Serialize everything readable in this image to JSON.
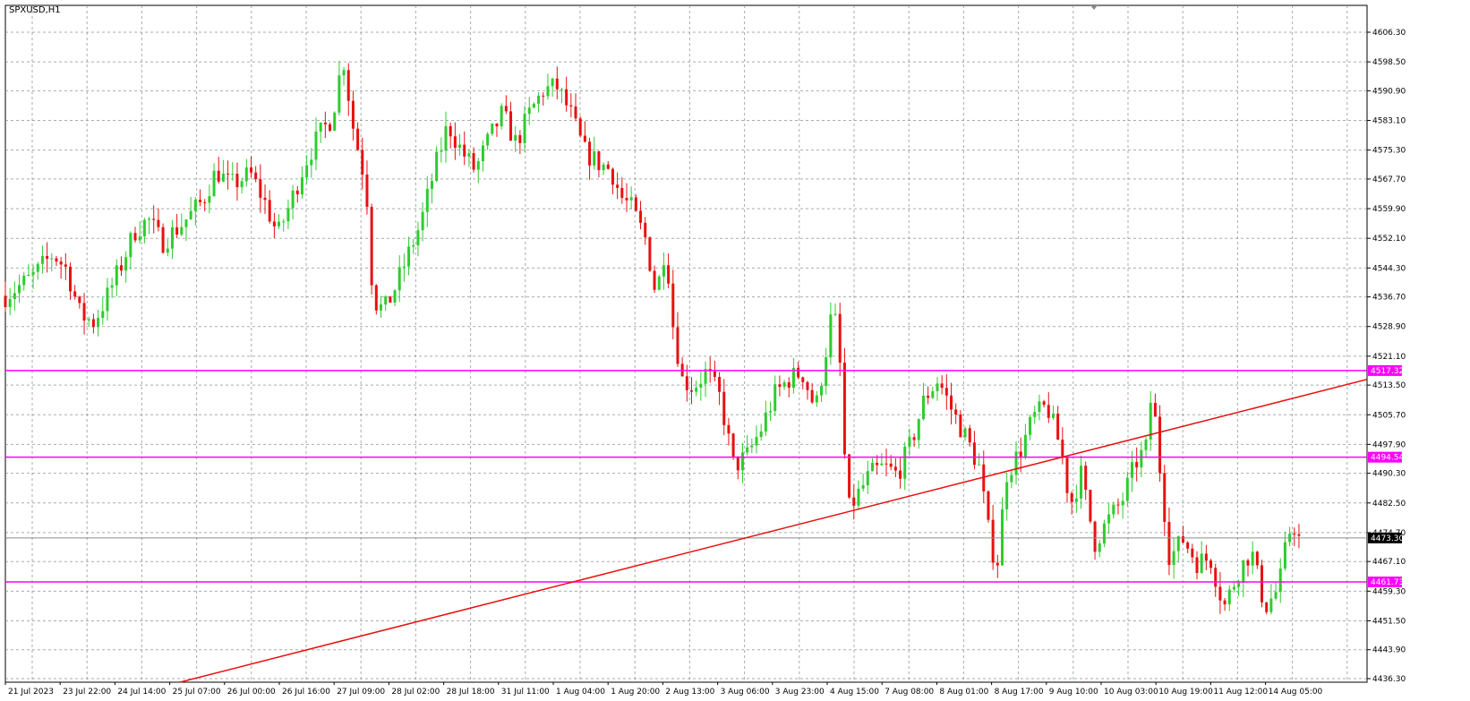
{
  "symbol_label": "SPXUSD,H1",
  "chart_data": {
    "type": "candlestick",
    "symbol": "SPXUSD",
    "timeframe": "H1",
    "ylim": [
      4436.3,
      4610.0
    ],
    "grid": true,
    "y_ticks": [
      {
        "value": 4606.3,
        "label": "4606.30"
      },
      {
        "value": 4598.5,
        "label": "4598.50"
      },
      {
        "value": 4590.9,
        "label": "4590.90"
      },
      {
        "value": 4583.1,
        "label": "4583.10"
      },
      {
        "value": 4575.3,
        "label": "4575.30"
      },
      {
        "value": 4567.7,
        "label": "4567.70"
      },
      {
        "value": 4559.9,
        "label": "4559.90"
      },
      {
        "value": 4552.1,
        "label": "4552.10"
      },
      {
        "value": 4544.3,
        "label": "4544.30"
      },
      {
        "value": 4536.7,
        "label": "4536.70"
      },
      {
        "value": 4528.9,
        "label": "4528.90"
      },
      {
        "value": 4521.1,
        "label": "4521.10"
      },
      {
        "value": 4513.5,
        "label": "4513.50"
      },
      {
        "value": 4505.7,
        "label": "4505.70"
      },
      {
        "value": 4497.9,
        "label": "4497.90"
      },
      {
        "value": 4490.3,
        "label": "4490.30"
      },
      {
        "value": 4482.5,
        "label": "4482.50"
      },
      {
        "value": 4474.7,
        "label": "4474.70"
      },
      {
        "value": 4467.1,
        "label": "4467.10"
      },
      {
        "value": 4459.3,
        "label": "4459.30"
      },
      {
        "value": 4451.5,
        "label": "4451.50"
      },
      {
        "value": 4443.9,
        "label": "4443.90"
      },
      {
        "value": 4436.3,
        "label": "4436.30"
      }
    ],
    "x_labels": [
      "21 Jul 2023",
      "23 Jul 22:00",
      "24 Jul 14:00",
      "25 Jul 07:00",
      "26 Jul 00:00",
      "26 Jul 16:00",
      "27 Jul 09:00",
      "28 Jul 02:00",
      "28 Jul 18:00",
      "31 Jul 11:00",
      "1 Aug 04:00",
      "1 Aug 20:00",
      "2 Aug 13:00",
      "3 Aug 06:00",
      "3 Aug 23:00",
      "4 Aug 15:00",
      "7 Aug 08:00",
      "8 Aug 01:00",
      "8 Aug 17:00",
      "9 Aug 10:00",
      "10 Aug 03:00",
      "10 Aug 19:00",
      "11 Aug 12:00",
      "14 Aug 05:00"
    ],
    "colors": {
      "bull": "#2ecc2e",
      "bear": "#e81010",
      "hline": "#ff00ff",
      "trendline": "#e81010",
      "price_box": "#000000",
      "grid": "#7f8c8d"
    },
    "horizontal_levels": [
      {
        "value": 4517.32,
        "label": "4517.32"
      },
      {
        "value": 4494.54,
        "label": "4494.54"
      },
      {
        "value": 4461.73,
        "label": "4461.73"
      }
    ],
    "current_price": {
      "value": 4473.3,
      "label": "4473.30"
    },
    "trendline": {
      "points": [
        [
          0.0,
          4430.0
        ],
        [
          1.0,
          4515.0
        ]
      ]
    },
    "close_path": [
      [
        0.0,
        4537
      ],
      [
        0.02,
        4542
      ],
      [
        0.035,
        4548
      ],
      [
        0.045,
        4544
      ],
      [
        0.055,
        4532
      ],
      [
        0.065,
        4530
      ],
      [
        0.075,
        4537
      ],
      [
        0.085,
        4545
      ],
      [
        0.095,
        4554
      ],
      [
        0.105,
        4557
      ],
      [
        0.115,
        4551
      ],
      [
        0.13,
        4556
      ],
      [
        0.145,
        4562
      ],
      [
        0.155,
        4570
      ],
      [
        0.165,
        4566
      ],
      [
        0.18,
        4569
      ],
      [
        0.19,
        4562
      ],
      [
        0.2,
        4553
      ],
      [
        0.21,
        4562
      ],
      [
        0.22,
        4572
      ],
      [
        0.23,
        4579
      ],
      [
        0.24,
        4584
      ],
      [
        0.248,
        4600
      ],
      [
        0.255,
        4582
      ],
      [
        0.265,
        4566
      ],
      [
        0.27,
        4536
      ],
      [
        0.278,
        4533
      ],
      [
        0.285,
        4538
      ],
      [
        0.295,
        4547
      ],
      [
        0.305,
        4556
      ],
      [
        0.315,
        4570
      ],
      [
        0.325,
        4582
      ],
      [
        0.335,
        4575
      ],
      [
        0.345,
        4570
      ],
      [
        0.355,
        4578
      ],
      [
        0.365,
        4585
      ],
      [
        0.375,
        4577
      ],
      [
        0.385,
        4585
      ],
      [
        0.395,
        4591
      ],
      [
        0.405,
        4592
      ],
      [
        0.415,
        4585
      ],
      [
        0.425,
        4575
      ],
      [
        0.435,
        4572
      ],
      [
        0.445,
        4570
      ],
      [
        0.452,
        4563
      ],
      [
        0.46,
        4560
      ],
      [
        0.47,
        4552
      ],
      [
        0.478,
        4537
      ],
      [
        0.485,
        4551
      ],
      [
        0.49,
        4530
      ],
      [
        0.497,
        4515
      ],
      [
        0.505,
        4513
      ],
      [
        0.515,
        4517
      ],
      [
        0.525,
        4510
      ],
      [
        0.535,
        4492
      ],
      [
        0.545,
        4495
      ],
      [
        0.555,
        4502
      ],
      [
        0.565,
        4511
      ],
      [
        0.575,
        4515
      ],
      [
        0.585,
        4517
      ],
      [
        0.595,
        4507
      ],
      [
        0.602,
        4521
      ],
      [
        0.608,
        4535
      ],
      [
        0.614,
        4515
      ],
      [
        0.618,
        4480
      ],
      [
        0.625,
        4484
      ],
      [
        0.635,
        4490
      ],
      [
        0.645,
        4492
      ],
      [
        0.655,
        4490
      ],
      [
        0.665,
        4498
      ],
      [
        0.675,
        4510
      ],
      [
        0.685,
        4515
      ],
      [
        0.695,
        4507
      ],
      [
        0.705,
        4500
      ],
      [
        0.715,
        4492
      ],
      [
        0.722,
        4475
      ],
      [
        0.728,
        4465
      ],
      [
        0.735,
        4490
      ],
      [
        0.745,
        4496
      ],
      [
        0.755,
        4505
      ],
      [
        0.765,
        4508
      ],
      [
        0.775,
        4497
      ],
      [
        0.782,
        4482
      ],
      [
        0.79,
        4490
      ],
      [
        0.8,
        4472
      ],
      [
        0.81,
        4478
      ],
      [
        0.82,
        4483
      ],
      [
        0.83,
        4493
      ],
      [
        0.838,
        4497
      ],
      [
        0.842,
        4513
      ],
      [
        0.848,
        4491
      ],
      [
        0.855,
        4468
      ],
      [
        0.865,
        4473
      ],
      [
        0.875,
        4467
      ],
      [
        0.885,
        4468
      ],
      [
        0.895,
        4455
      ],
      [
        0.905,
        4464
      ],
      [
        0.915,
        4470
      ],
      [
        0.925,
        4455
      ],
      [
        0.935,
        4460
      ],
      [
        0.94,
        4470
      ],
      [
        0.945,
        4478
      ],
      [
        0.95,
        4473
      ]
    ]
  }
}
